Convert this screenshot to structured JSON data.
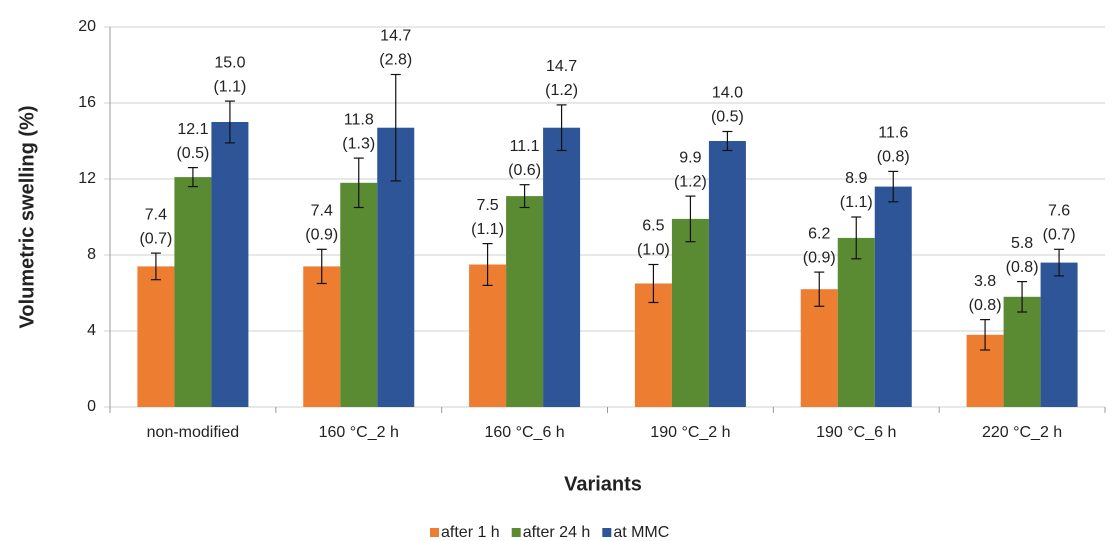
{
  "chart_data": {
    "type": "bar",
    "y_label": "Volumetric swelling (%)",
    "x_label": "Variants",
    "categories": [
      "non-modified",
      "160 °C_2 h",
      "160 °C_6 h",
      "190 °C_2 h",
      "190 °C_6 h",
      "220 °C_2 h"
    ],
    "ylim": [
      0,
      20
    ],
    "yticks": [
      0,
      4,
      8,
      12,
      16,
      20
    ],
    "grid": true,
    "series": [
      {
        "name": "after 1 h",
        "color": "#ed7d31",
        "values": [
          7.4,
          7.4,
          7.5,
          6.5,
          6.2,
          3.8
        ],
        "value_labels": [
          "7.4",
          "7.4",
          "7.5",
          "6.5",
          "6.2",
          "3.8"
        ],
        "errors": [
          0.7,
          0.9,
          1.1,
          1.0,
          0.9,
          0.8
        ],
        "error_labels": [
          "(0.7)",
          "(0.9)",
          "(1.1)",
          "(1.0)",
          "(0.9)",
          "(0.8)"
        ]
      },
      {
        "name": "after 24 h",
        "color": "#5a8a32",
        "values": [
          12.1,
          11.8,
          11.1,
          9.9,
          8.9,
          5.8
        ],
        "value_labels": [
          "12.1",
          "11.8",
          "11.1",
          "9.9",
          "8.9",
          "5.8"
        ],
        "errors": [
          0.5,
          1.3,
          0.6,
          1.2,
          1.1,
          0.8
        ],
        "error_labels": [
          "(0.5)",
          "(1.3)",
          "(0.6)",
          "(1.2)",
          "(1.1)",
          "(0.8)"
        ]
      },
      {
        "name": "at MMC",
        "color": "#2e5597",
        "values": [
          15.0,
          14.7,
          14.7,
          14.0,
          11.6,
          7.6
        ],
        "value_labels": [
          "15.0",
          "14.7",
          "14.7",
          "14.0",
          "11.6",
          "7.6"
        ],
        "errors": [
          1.1,
          2.8,
          1.2,
          0.5,
          0.8,
          0.7
        ],
        "error_labels": [
          "(1.1)",
          "(2.8)",
          "(1.2)",
          "(0.5)",
          "(0.8)",
          "(0.7)"
        ]
      }
    ]
  }
}
